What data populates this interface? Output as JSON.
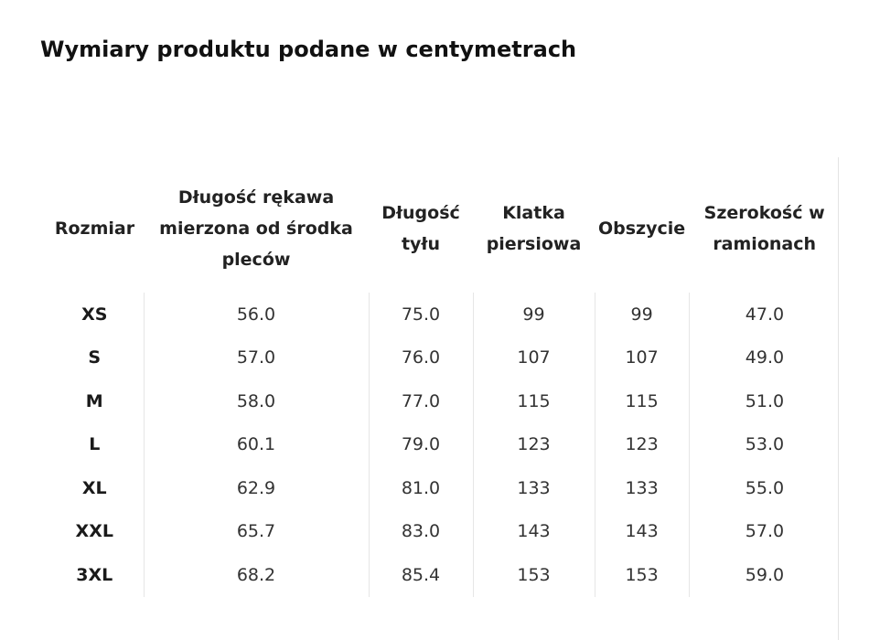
{
  "title": "Wymiary produktu podane w centymetrach",
  "table": {
    "headers": [
      "Rozmiar",
      "Długość rękawa mierzona od środka pleców",
      "Długość tyłu",
      "Klatka piersiowa",
      "Obszycie",
      "Szerokość w ramionach"
    ],
    "rows": [
      [
        "XS",
        "56.0",
        "75.0",
        "99",
        "99",
        "47.0"
      ],
      [
        "S",
        "57.0",
        "76.0",
        "107",
        "107",
        "49.0"
      ],
      [
        "M",
        "58.0",
        "77.0",
        "115",
        "115",
        "51.0"
      ],
      [
        "L",
        "60.1",
        "79.0",
        "123",
        "123",
        "53.0"
      ],
      [
        "XL",
        "62.9",
        "81.0",
        "133",
        "133",
        "55.0"
      ],
      [
        "XXL",
        "65.7",
        "83.0",
        "143",
        "143",
        "57.0"
      ],
      [
        "3XL",
        "68.2",
        "85.4",
        "153",
        "153",
        "59.0"
      ]
    ]
  }
}
